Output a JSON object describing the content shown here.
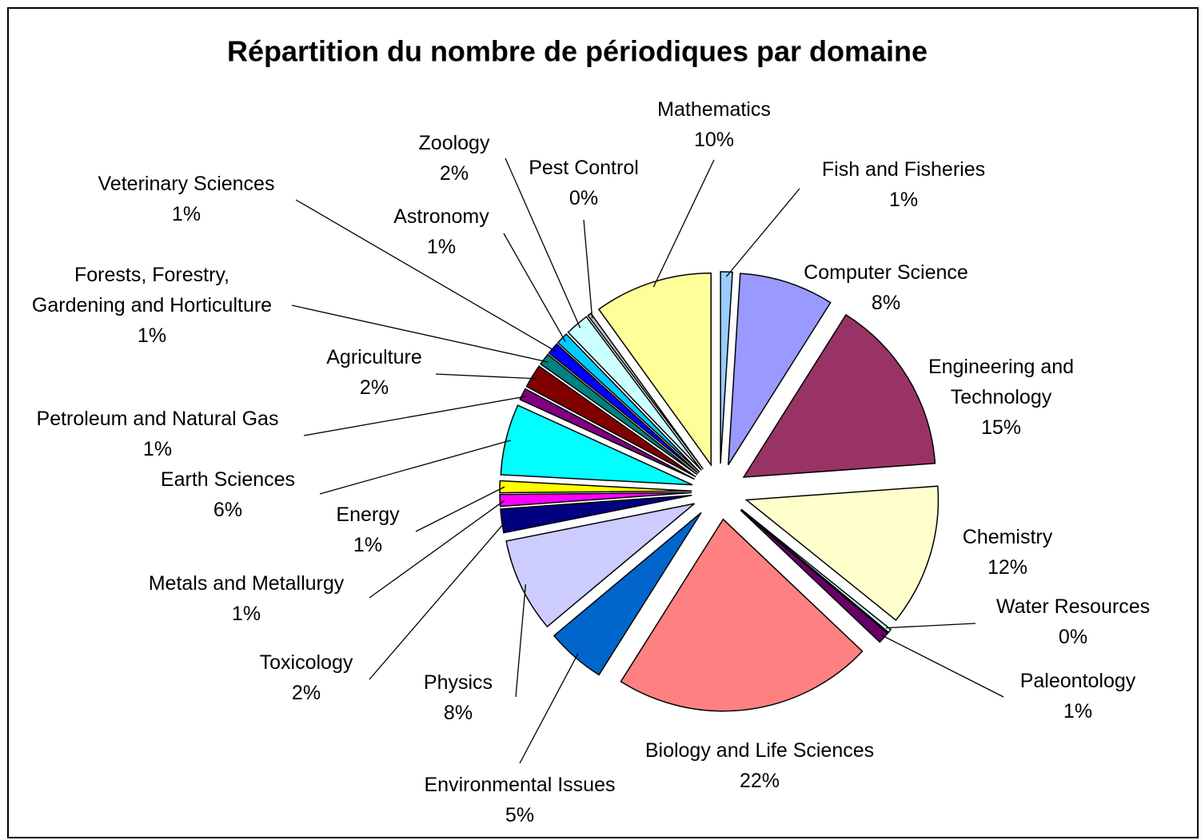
{
  "chart_data": {
    "type": "pie",
    "title": "Répartition du nombre de périodiques par domaine",
    "categories": [
      "Fish and Fisheries",
      "Computer Science",
      "Engineering and\nTechnology",
      "Chemistry",
      "Water Resources",
      "Paleontology",
      "Biology and Life Sciences",
      "Environmental Issues",
      "Physics",
      "Toxicology",
      "Metals and Metallurgy",
      "Energy",
      "Earth Sciences",
      "Petroleum and Natural Gas",
      "Agriculture",
      "Forests, Forestry,\nGardening and Horticulture",
      "Veterinary Sciences",
      "Astronomy",
      "Zoology",
      "Pest Control",
      "Mathematics"
    ],
    "values": [
      1,
      8,
      15,
      12,
      0.3,
      1,
      22,
      5,
      8,
      2,
      1,
      1,
      6,
      1,
      2,
      1,
      1,
      1,
      2,
      0.3,
      10
    ],
    "value_labels": [
      "1%",
      "8%",
      "15%",
      "12%",
      "0%",
      "1%",
      "22%",
      "5%",
      "8%",
      "2%",
      "1%",
      "1%",
      "6%",
      "1%",
      "2%",
      "1%",
      "1%",
      "1%",
      "2%",
      "0%",
      "10%"
    ],
    "colors": [
      "#99ccff",
      "#9999ff",
      "#993366",
      "#ffffcc",
      "#ccffff",
      "#660066",
      "#ff8080",
      "#0066cc",
      "#ccccff",
      "#000080",
      "#ff00ff",
      "#ffff00",
      "#00ffff",
      "#800080",
      "#800000",
      "#008080",
      "#0000ff",
      "#00ccff",
      "#ccffff",
      "#c0c0c0",
      "#ffff99"
    ]
  }
}
